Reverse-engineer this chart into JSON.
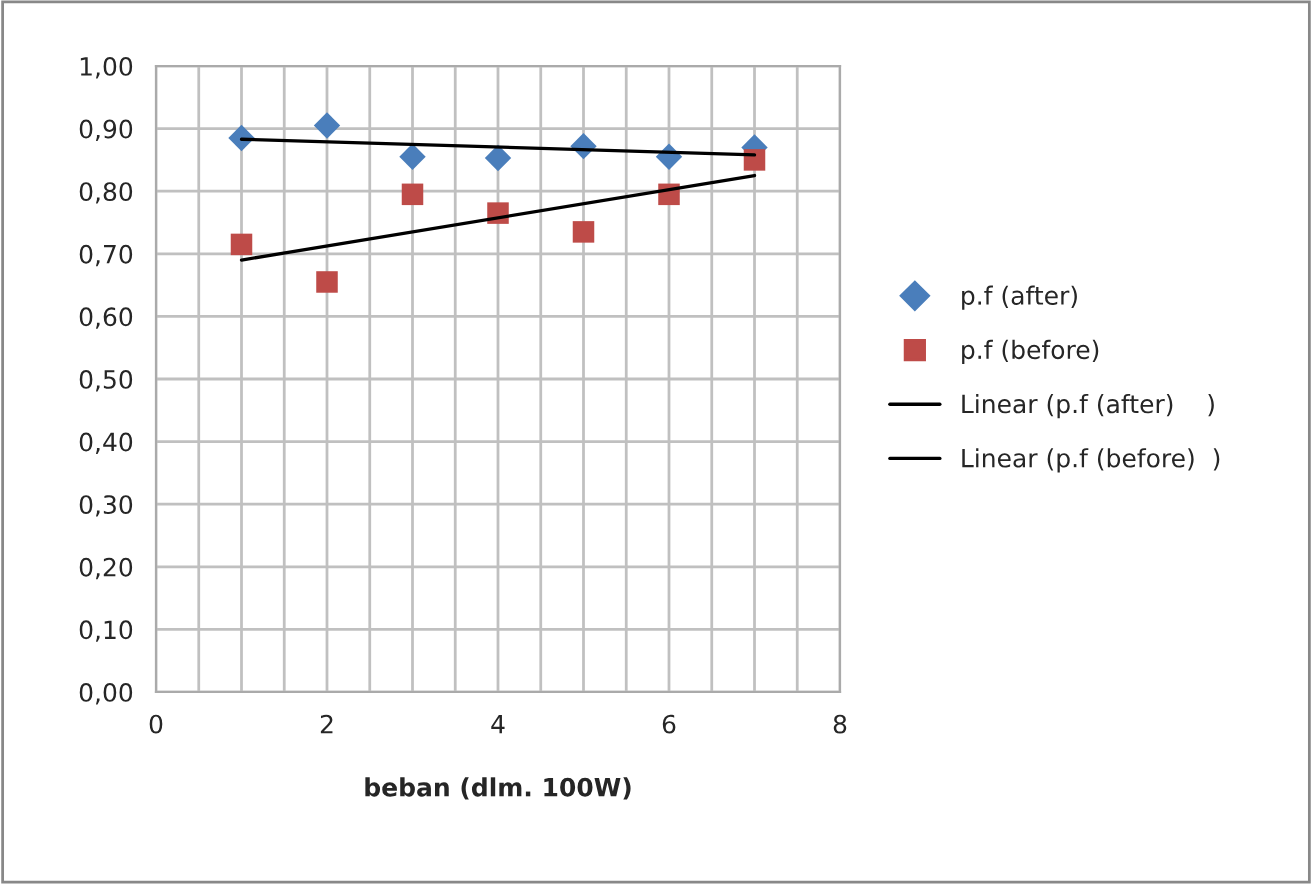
{
  "chart_data": {
    "type": "scatter",
    "xlabel": "beban (dlm. 100W)",
    "xlim": [
      0,
      8
    ],
    "xticks": [
      0,
      {
        "value": 0.5,
        "label": null
      },
      {
        "value": 1,
        "label": null
      },
      {
        "value": 1.5,
        "label": null
      },
      2,
      {
        "value": 2.5,
        "label": null
      },
      {
        "value": 3,
        "label": null
      },
      {
        "value": 3.5,
        "label": null
      },
      4,
      {
        "value": 4.5,
        "label": null
      },
      {
        "value": 5,
        "label": null
      },
      {
        "value": 5.5,
        "label": null
      },
      6,
      {
        "value": 6.5,
        "label": null
      },
      {
        "value": 7,
        "label": null
      },
      {
        "value": 7.5,
        "label": null
      },
      8
    ],
    "ylim": [
      0,
      1
    ],
    "yticks": [
      {
        "value": 0,
        "label": "0,00"
      },
      {
        "value": 0.1,
        "label": "0,10"
      },
      {
        "value": 0.2,
        "label": "0,20"
      },
      {
        "value": 0.3,
        "label": "0,30"
      },
      {
        "value": 0.4,
        "label": "0,40"
      },
      {
        "value": 0.5,
        "label": "0,50"
      },
      {
        "value": 0.6,
        "label": "0,60"
      },
      {
        "value": 0.7,
        "label": "0,70"
      },
      {
        "value": 0.8,
        "label": "0,80"
      },
      {
        "value": 0.9,
        "label": "0,90"
      },
      {
        "value": 1,
        "label": "1,00"
      }
    ],
    "grid": true,
    "legend": "right",
    "series": [
      {
        "name": "p.f (after)",
        "marker": "diamond",
        "color": "#4a7ebb",
        "x": [
          1,
          2,
          3,
          4,
          5,
          6,
          7
        ],
        "values": [
          0.885,
          0.905,
          0.855,
          0.853,
          0.872,
          0.855,
          0.87
        ]
      },
      {
        "name": "p.f (before)",
        "marker": "square",
        "color": "#be4b48",
        "x": [
          1,
          2,
          3,
          4,
          5,
          6,
          7
        ],
        "values": [
          0.715,
          0.655,
          0.795,
          0.765,
          0.735,
          0.795,
          0.85
        ]
      },
      {
        "name": "Linear (p.f (after)    )",
        "type": "line",
        "marker": "none",
        "line_style": "solid",
        "color": "#000000",
        "x": [
          1,
          7
        ],
        "values": [
          0.883,
          0.858
        ]
      },
      {
        "name": "Linear (p.f (before)  )",
        "type": "line",
        "marker": "none",
        "line_style": "solid",
        "color": "#000000",
        "x": [
          1,
          7
        ],
        "values": [
          0.69,
          0.825
        ]
      }
    ]
  }
}
